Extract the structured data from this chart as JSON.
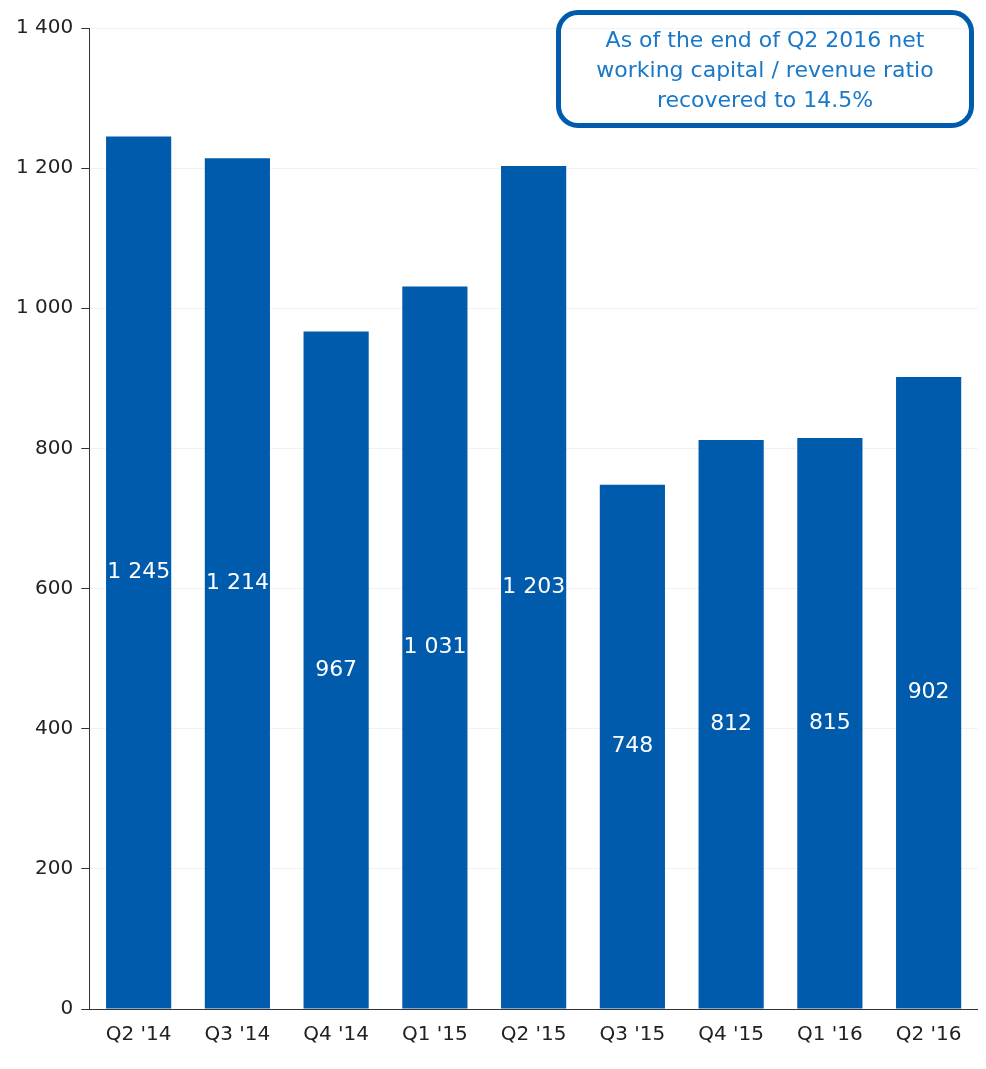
{
  "chart_data": {
    "type": "bar",
    "categories": [
      "Q2 '14",
      "Q3 '14",
      "Q4 '14",
      "Q1 '15",
      "Q2 '15",
      "Q3 '15",
      "Q4 '15",
      "Q1 '16",
      "Q2 '16"
    ],
    "values": [
      1245,
      1214,
      967,
      1031,
      1203,
      748,
      812,
      815,
      902
    ],
    "value_labels": [
      "1 245",
      "1 214",
      "967",
      "1 031",
      "1 203",
      "748",
      "812",
      "815",
      "902"
    ],
    "color": "#005bac",
    "ylim": [
      0,
      1400
    ],
    "yticks": [
      {
        "value": 0,
        "label": "0"
      },
      {
        "value": 200,
        "label": "200"
      },
      {
        "value": 400,
        "label": "400"
      },
      {
        "value": 600,
        "label": "600"
      },
      {
        "value": 800,
        "label": "800"
      },
      {
        "value": 1000,
        "label": "1 000"
      },
      {
        "value": 1200,
        "label": "1 200"
      },
      {
        "value": 1400,
        "label": "1 400"
      }
    ],
    "grid": "y",
    "annotations": [
      "As of the end of Q2 2016 net working capital / revenue ratio recovered to 14.5%"
    ]
  }
}
